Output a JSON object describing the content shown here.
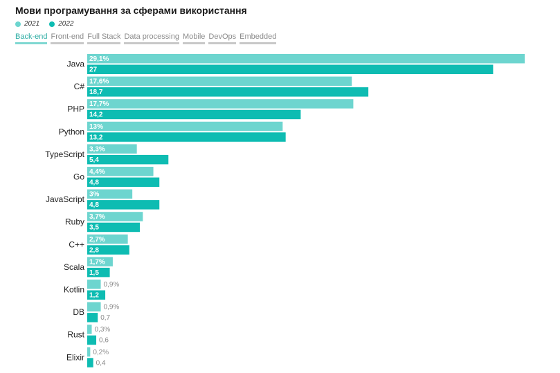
{
  "title": "Мови програмування за сферами використання",
  "legend": [
    {
      "label": "2021",
      "color": "#6dd5cf"
    },
    {
      "label": "2022",
      "color": "#0ebcb2"
    }
  ],
  "tabs": [
    {
      "label": "Back-end",
      "active": true
    },
    {
      "label": "Front-end",
      "active": false
    },
    {
      "label": "Full Stack",
      "active": false
    },
    {
      "label": "Data processing",
      "active": false
    },
    {
      "label": "Mobile",
      "active": false
    },
    {
      "label": "DevOps",
      "active": false
    },
    {
      "label": "Embedded",
      "active": false
    }
  ],
  "chart_data": {
    "type": "bar",
    "orientation": "horizontal",
    "title": "Мови програмування за сферами використання",
    "xlim": [
      0,
      29.1
    ],
    "grid": false,
    "legend_position": "top-left",
    "categories": [
      "Java",
      "C#",
      "PHP",
      "Python",
      "TypeScript",
      "Go",
      "JavaScript",
      "Ruby",
      "C++",
      "Scala",
      "Kotlin",
      "DB",
      "Rust",
      "Elixir"
    ],
    "series": [
      {
        "name": "2021",
        "color": "#6dd5cf",
        "values": [
          29.1,
          17.6,
          17.7,
          13,
          3.3,
          4.4,
          3,
          3.7,
          2.7,
          1.7,
          0.9,
          0.9,
          0.3,
          0.2
        ],
        "labels": [
          "29,1%",
          "17,6%",
          "17,7%",
          "13%",
          "3,3%",
          "4,4%",
          "3%",
          "3,7%",
          "2,7%",
          "1,7%",
          "0,9%",
          "0,9%",
          "0,3%",
          "0,2%"
        ]
      },
      {
        "name": "2022",
        "color": "#0ebcb2",
        "values": [
          27,
          18.7,
          14.2,
          13.2,
          5.4,
          4.8,
          4.8,
          3.5,
          2.8,
          1.5,
          1.2,
          0.7,
          0.6,
          0.4
        ],
        "labels": [
          "27",
          "18,7",
          "14,2",
          "13,2",
          "5,4",
          "4,8",
          "4,8",
          "3,5",
          "2,8",
          "1,5",
          "1,2",
          "0,7",
          "0,6",
          "0,4"
        ]
      }
    ]
  }
}
